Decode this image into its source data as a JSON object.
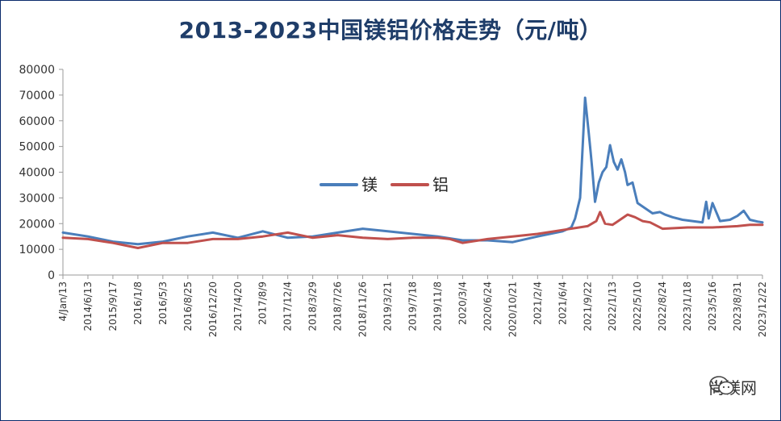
{
  "chart_data": {
    "type": "line",
    "title": "2013-2023中国镁铝价格走势（元/吨）",
    "ylim": [
      0,
      80000
    ],
    "yticks": [
      0,
      10000,
      20000,
      30000,
      40000,
      50000,
      60000,
      70000,
      80000
    ],
    "xticks": [
      "4/Jan/13",
      "2014/6/13",
      "2015/9/17",
      "2016/1/8",
      "2016/5/3",
      "2016/8/25",
      "2016/12/20",
      "2017/4/20",
      "2017/8/9",
      "2017/12/4",
      "2018/3/29",
      "2018/7/26",
      "2018/11/26",
      "2019/3/21",
      "2019/7/18",
      "2019/11/8",
      "2020/3/4",
      "2020/6/24",
      "2020/10/21",
      "2021/2/4",
      "2021/6/4",
      "2021/9/22",
      "2022/1/13",
      "2022/5/10",
      "2022/8/24",
      "2023/1/18",
      "2023/5/16",
      "2023/8/31",
      "2023/12/22"
    ],
    "grid": false,
    "legend_position": "center-left",
    "series": [
      {
        "name": "镁",
        "color": "#4a7ebb",
        "x": [
          0,
          1,
          2,
          3,
          4,
          5,
          6,
          7,
          8,
          9,
          10,
          11,
          12,
          13,
          14,
          15,
          16,
          17,
          18,
          19,
          20,
          20.35,
          20.5,
          20.7,
          20.9,
          21.05,
          21.12,
          21.2,
          21.3,
          21.45,
          21.6,
          21.75,
          21.9,
          22.05,
          22.2,
          22.35,
          22.5,
          22.6,
          22.8,
          23.0,
          23.3,
          23.6,
          23.9,
          24.1,
          24.4,
          24.8,
          25.2,
          25.6,
          25.75,
          25.85,
          26.0,
          26.3,
          26.7,
          27.0,
          27.25,
          27.5,
          27.8,
          28
        ],
        "y": [
          16500,
          15000,
          13000,
          12000,
          13000,
          15000,
          16500,
          14500,
          17000,
          14500,
          15000,
          16500,
          18000,
          17000,
          16000,
          15000,
          13500,
          13500,
          12800,
          15000,
          17000,
          18500,
          22000,
          30000,
          69000,
          55000,
          48000,
          40000,
          28500,
          36000,
          40000,
          42000,
          50500,
          44000,
          41000,
          45000,
          40000,
          35000,
          36000,
          28000,
          26000,
          24000,
          24500,
          23500,
          22500,
          21500,
          21000,
          20500,
          28500,
          22000,
          28000,
          21000,
          21500,
          23000,
          25000,
          21500,
          20800,
          20500
        ]
      },
      {
        "name": "铝",
        "color": "#c0504d",
        "x": [
          0,
          1,
          2,
          3,
          4,
          5,
          6,
          7,
          8,
          9,
          10,
          11,
          12,
          13,
          14,
          15,
          15.5,
          16,
          17,
          18,
          19,
          20,
          21,
          21.35,
          21.5,
          21.7,
          22.0,
          22.3,
          22.6,
          22.9,
          23.2,
          23.5,
          24,
          25,
          26,
          27,
          27.5,
          28
        ],
        "y": [
          14500,
          14000,
          12500,
          10500,
          12500,
          12500,
          14000,
          14000,
          15000,
          16500,
          14500,
          15500,
          14500,
          14000,
          14500,
          14500,
          14000,
          12500,
          14000,
          15000,
          16000,
          17500,
          19000,
          21000,
          24500,
          20000,
          19500,
          21500,
          23500,
          22500,
          21000,
          20500,
          18000,
          18500,
          18500,
          19000,
          19500,
          19500
        ]
      }
    ]
  },
  "watermark": {
    "text": "尚镁网",
    "icon": "wechat-icon"
  }
}
